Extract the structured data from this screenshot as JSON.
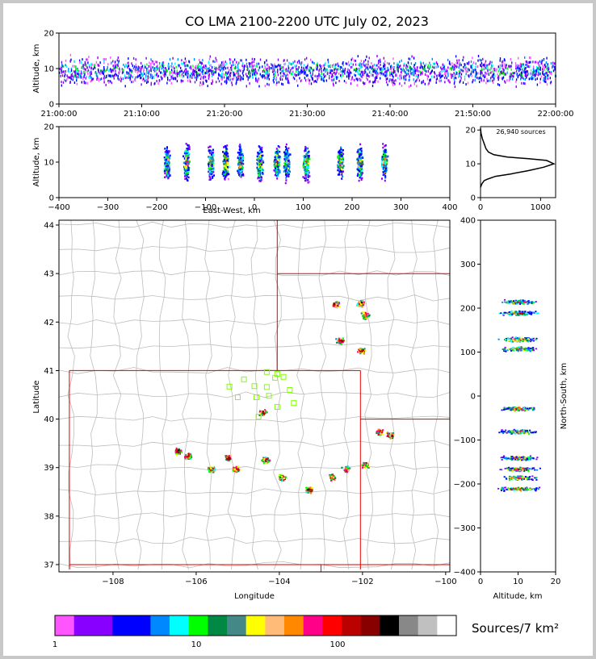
{
  "title": "CO LMA 2100-2200 UTC July 02, 2023",
  "colors": {
    "axis": "#000000",
    "county_lines": "#bdbdbd",
    "state_lines": "#e00000",
    "station_marker": "#7fff00",
    "colorbar": [
      "#ff55ff",
      "#8800ff",
      "#8800ff",
      "#0000ff",
      "#0000ff",
      "#0088ff",
      "#00ffff",
      "#00ff00",
      "#008844",
      "#448888",
      "#ffff00",
      "#ffbb77",
      "#ff8800",
      "#ff0088",
      "#ff0000",
      "#bb0000",
      "#880000",
      "#000000",
      "#888888",
      "#c0c0c0",
      "#ffffff"
    ]
  },
  "chart_data": [
    {
      "id": "time_height",
      "type": "heatmap",
      "x_ticks": [
        "21:00:00",
        "21:10:00",
        "21:20:00",
        "21:30:00",
        "21:40:00",
        "21:50:00",
        "22:00:00"
      ],
      "y_ticks": [
        0,
        10,
        20
      ],
      "ylabel": "Altitude, km",
      "xlim": [
        "21:00:00",
        "22:00:00"
      ],
      "ylim": [
        0,
        20
      ]
    },
    {
      "id": "ew_height",
      "type": "heatmap",
      "x_ticks": [
        -400,
        -300,
        -200,
        -100,
        0,
        100,
        200,
        300,
        400
      ],
      "y_ticks": [
        0,
        10,
        20
      ],
      "xlabel": "East-West, km",
      "ylabel": "Altitude, km",
      "xlim": [
        -400,
        400
      ],
      "ylim": [
        0,
        20
      ],
      "clusters_x_km": [
        -180,
        -140,
        -90,
        -60,
        -30,
        10,
        45,
        65,
        105,
        175,
        215,
        265
      ]
    },
    {
      "id": "altitude_histogram",
      "type": "line",
      "annotation": "26,940 sources",
      "x_ticks": [
        0,
        1000
      ],
      "y_ticks": [
        0,
        10,
        20
      ],
      "xlim": [
        0,
        1250
      ],
      "ylim": [
        0,
        20
      ],
      "x": [
        0,
        20,
        60,
        120,
        250,
        500,
        800,
        1050,
        1220,
        1100,
        800,
        450,
        220,
        130,
        90,
        60,
        30,
        10,
        0
      ],
      "y": [
        3,
        4,
        5,
        5.5,
        6.3,
        7,
        8,
        9,
        10,
        11,
        11.5,
        12,
        12.7,
        13.5,
        14.5,
        16,
        17.5,
        19,
        20.5
      ]
    },
    {
      "id": "plan_view",
      "type": "scatter",
      "x_ticks": [
        -108,
        -106,
        -104,
        -102,
        -100
      ],
      "y_ticks": [
        37,
        38,
        39,
        40,
        41,
        42,
        43,
        44
      ],
      "xlabel": "Longitude",
      "ylabel": "Latitude",
      "xlim": [
        -109.3,
        -99.9
      ],
      "ylim": [
        36.85,
        44.1
      ],
      "stations": [
        [
          -104.3,
          40.97
        ],
        [
          -104.05,
          40.93
        ],
        [
          -104.1,
          40.85
        ],
        [
          -103.9,
          40.87
        ],
        [
          -104.85,
          40.82
        ],
        [
          -105.2,
          40.67
        ],
        [
          -104.6,
          40.68
        ],
        [
          -104.3,
          40.66
        ],
        [
          -103.75,
          40.6
        ],
        [
          -105.0,
          40.45
        ],
        [
          -104.55,
          40.45
        ],
        [
          -104.25,
          40.48
        ],
        [
          -103.65,
          40.33
        ],
        [
          -104.05,
          40.25
        ],
        [
          -104.5,
          40.05
        ]
      ],
      "storms": [
        [
          -102.65,
          42.38
        ],
        [
          -102.05,
          42.4
        ],
        [
          -101.95,
          42.15
        ],
        [
          -102.55,
          41.63
        ],
        [
          -102.05,
          41.43
        ],
        [
          -104.4,
          40.15
        ],
        [
          -106.45,
          39.35
        ],
        [
          -106.2,
          39.25
        ],
        [
          -105.25,
          39.22
        ],
        [
          -105.65,
          38.98
        ],
        [
          -105.05,
          38.98
        ],
        [
          -104.35,
          39.17
        ],
        [
          -103.95,
          38.8
        ],
        [
          -103.3,
          38.55
        ],
        [
          -102.75,
          38.82
        ],
        [
          -102.4,
          38.98
        ],
        [
          -101.95,
          39.07
        ],
        [
          -101.6,
          39.75
        ],
        [
          -101.35,
          39.68
        ]
      ]
    },
    {
      "id": "ns_height",
      "type": "heatmap",
      "x_ticks": [
        0,
        10,
        20
      ],
      "y_ticks": [
        -400,
        -300,
        -200,
        -100,
        0,
        100,
        200,
        300,
        400
      ],
      "xlabel": "Altitude, km",
      "ylabel": "North-South, km",
      "xlim": [
        0,
        20
      ],
      "ylim": [
        -400,
        400
      ],
      "clusters_y_km": [
        215,
        190,
        130,
        108,
        -28,
        -80,
        -140,
        -165,
        -185,
        -210
      ]
    },
    {
      "id": "colorbar",
      "type": "table",
      "tick_labels": [
        "1",
        "10",
        "100"
      ],
      "label": "Sources/7 km²"
    }
  ]
}
